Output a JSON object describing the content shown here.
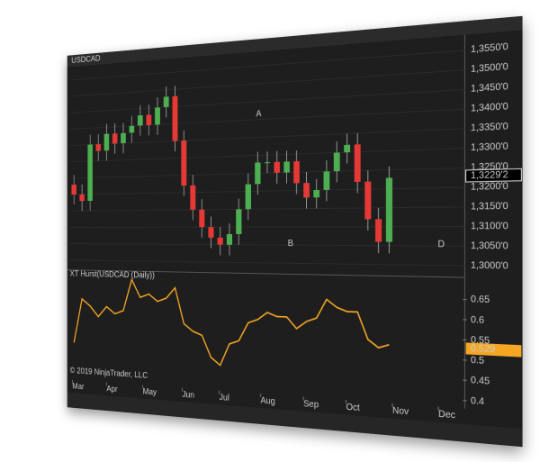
{
  "chart_data": [
    {
      "type": "candlestick",
      "title": "USDCAD",
      "open": [
        1.323,
        1.32,
        1.318,
        1.335,
        1.333,
        1.338,
        1.335,
        1.338,
        1.34,
        1.343,
        1.34,
        1.345,
        1.348,
        1.335,
        1.322,
        1.315,
        1.31,
        1.307,
        1.305,
        1.308,
        1.315,
        1.322,
        1.328,
        1.328,
        1.325,
        1.328,
        1.322,
        1.318,
        1.32,
        1.325,
        1.33,
        1.332,
        1.322,
        1.312,
        1.306
      ],
      "high": [
        1.326,
        1.323,
        1.338,
        1.338,
        1.341,
        1.341,
        1.341,
        1.343,
        1.346,
        1.346,
        1.348,
        1.351,
        1.351,
        1.338,
        1.325,
        1.318,
        1.313,
        1.31,
        1.311,
        1.318,
        1.325,
        1.331,
        1.331,
        1.331,
        1.331,
        1.331,
        1.325,
        1.323,
        1.328,
        1.333,
        1.335,
        1.335,
        1.325,
        1.315,
        1.3259
      ],
      "low": [
        1.317,
        1.315,
        1.315,
        1.33,
        1.33,
        1.332,
        1.332,
        1.335,
        1.337,
        1.337,
        1.337,
        1.342,
        1.332,
        1.319,
        1.312,
        1.307,
        1.304,
        1.302,
        1.302,
        1.305,
        1.312,
        1.319,
        1.325,
        1.322,
        1.322,
        1.319,
        1.315,
        1.315,
        1.317,
        1.322,
        1.327,
        1.319,
        1.309,
        1.303,
        1.303
      ],
      "close": [
        1.32,
        1.318,
        1.335,
        1.333,
        1.338,
        1.335,
        1.338,
        1.34,
        1.343,
        1.34,
        1.345,
        1.348,
        1.335,
        1.322,
        1.315,
        1.31,
        1.307,
        1.305,
        1.308,
        1.315,
        1.322,
        1.328,
        1.328,
        1.325,
        1.328,
        1.322,
        1.318,
        1.32,
        1.325,
        1.33,
        1.332,
        1.322,
        1.312,
        1.306,
        1.3229
      ],
      "up_color": "#4caf50",
      "down_color": "#e53935",
      "current_label": "1,3229'2",
      "annotations": [
        "A",
        "B",
        "D"
      ],
      "ylim": [
        1.298,
        1.358
      ],
      "yticks": [
        {
          "value": 1.3,
          "label": "1,3000'0"
        },
        {
          "value": 1.305,
          "label": "1,3050'0"
        },
        {
          "value": 1.31,
          "label": "1,3100'0"
        },
        {
          "value": 1.315,
          "label": "1,3150'0"
        },
        {
          "value": 1.32,
          "label": "1,3200'0"
        },
        {
          "value": 1.325,
          "label": "1,3250'0"
        },
        {
          "value": 1.33,
          "label": "1,3300'0"
        },
        {
          "value": 1.335,
          "label": "1,3350'0"
        },
        {
          "value": 1.34,
          "label": "1,3400'0"
        },
        {
          "value": 1.345,
          "label": "1,3450'0"
        },
        {
          "value": 1.35,
          "label": "1,3500'0"
        },
        {
          "value": 1.355,
          "label": "1,3550'0"
        }
      ],
      "xlim": [
        0,
        41
      ],
      "xticks": [
        {
          "value": 0.3,
          "label": "Mar"
        },
        {
          "value": 4.5,
          "label": "Apr"
        },
        {
          "value": 8.8,
          "label": "May"
        },
        {
          "value": 13.3,
          "label": "Jun"
        },
        {
          "value": 17.4,
          "label": "Jul"
        },
        {
          "value": 21.8,
          "label": "Aug"
        },
        {
          "value": 26.2,
          "label": "Sep"
        },
        {
          "value": 30.4,
          "label": "Oct"
        },
        {
          "value": 34.8,
          "label": "Nov"
        },
        {
          "value": 39,
          "label": "Dec"
        }
      ]
    },
    {
      "type": "line",
      "title": "XT Hurst(USDCAD (Daily))",
      "footer": "© 2019 NinjaTrader, LLC",
      "series": [
        {
          "name": "XT Hurst",
          "color": "#f5a623",
          "values": [
            0.49,
            0.62,
            0.6,
            0.57,
            0.6,
            0.58,
            0.59,
            0.68,
            0.63,
            0.64,
            0.62,
            0.63,
            0.66,
            0.56,
            0.54,
            0.53,
            0.47,
            0.45,
            0.51,
            0.52,
            0.57,
            0.58,
            0.6,
            0.59,
            0.59,
            0.56,
            0.58,
            0.59,
            0.64,
            0.62,
            0.61,
            0.61,
            0.54,
            0.52,
            0.529
          ]
        }
      ],
      "ylim": [
        0.38,
        0.69
      ],
      "yticks": [
        0.4,
        0.45,
        0.5,
        0.55,
        0.6,
        0.65
      ]
    }
  ]
}
